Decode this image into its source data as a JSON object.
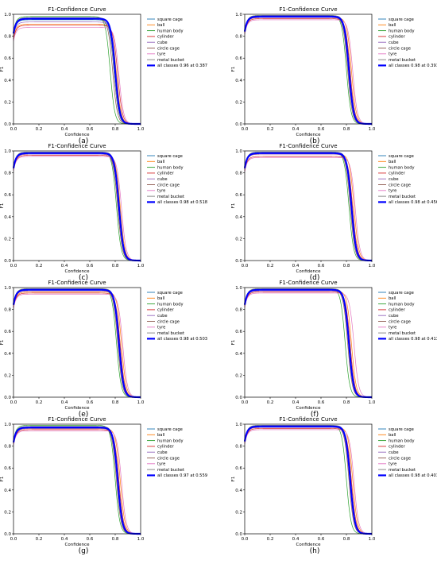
{
  "legend_labels": [
    "square cage",
    "ball",
    "human body",
    "cylinder",
    "cube",
    "circle cage",
    "tyre",
    "metal bucket"
  ],
  "legend_colors": [
    "#1f77b4",
    "#ff7f0e",
    "#2ca02c",
    "#d62728",
    "#9467bd",
    "#8c564b",
    "#e377c2",
    "#7f7f7f"
  ],
  "all_color": "#0000ff",
  "chart_data": [
    {
      "type": "line",
      "panel_label": "(a)",
      "title": "F1-Confidence Curve",
      "xlabel": "Confidence",
      "ylabel": "F1",
      "xlim": [
        0,
        1
      ],
      "ylim": [
        0,
        1
      ],
      "xticks": [
        "0.0",
        "0.2",
        "0.4",
        "0.6",
        "0.8",
        "1.0"
      ],
      "yticks": [
        "0.0",
        "0.2",
        "0.4",
        "0.6",
        "0.8",
        "1.0"
      ],
      "legend_position": "right",
      "all_classes_label": "all classes 0.96 at 0.387",
      "series": [
        {
          "name": "square cage",
          "plateau": 0.95,
          "knee": 0.79
        },
        {
          "name": "ball",
          "plateau": 0.91,
          "knee": 0.81
        },
        {
          "name": "human body",
          "plateau": 0.98,
          "knee": 0.76
        },
        {
          "name": "cylinder",
          "plateau": 0.9,
          "knee": 0.82
        },
        {
          "name": "cube",
          "plateau": 0.93,
          "knee": 0.8
        },
        {
          "name": "circle cage",
          "plateau": 0.96,
          "knee": 0.78
        },
        {
          "name": "tyre",
          "plateau": 0.88,
          "knee": 0.83
        },
        {
          "name": "metal bucket",
          "plateau": 0.97,
          "knee": 0.79
        },
        {
          "name": "all classes",
          "plateau": 0.96,
          "knee": 0.8
        }
      ]
    },
    {
      "type": "line",
      "panel_label": "(b)",
      "title": "F1-Confidence Curve",
      "xlabel": "Confidence",
      "ylabel": "F1",
      "xlim": [
        0,
        1
      ],
      "ylim": [
        0,
        1
      ],
      "xticks": [
        "0.0",
        "0.2",
        "0.4",
        "0.6",
        "0.8",
        "1.0"
      ],
      "yticks": [
        "0.0",
        "0.2",
        "0.4",
        "0.6",
        "0.8",
        "1.0"
      ],
      "legend_position": "right",
      "all_classes_label": "all classes 0.98 at 0.391",
      "series": [
        {
          "name": "square cage",
          "plateau": 0.98,
          "knee": 0.82
        },
        {
          "name": "ball",
          "plateau": 0.97,
          "knee": 0.84
        },
        {
          "name": "human body",
          "plateau": 0.99,
          "knee": 0.8
        },
        {
          "name": "cylinder",
          "plateau": 0.96,
          "knee": 0.83
        },
        {
          "name": "cube",
          "plateau": 0.97,
          "knee": 0.82
        },
        {
          "name": "circle cage",
          "plateau": 0.98,
          "knee": 0.81
        },
        {
          "name": "tyre",
          "plateau": 0.95,
          "knee": 0.85
        },
        {
          "name": "metal bucket",
          "plateau": 0.99,
          "knee": 0.82
        },
        {
          "name": "all classes",
          "plateau": 0.98,
          "knee": 0.82
        }
      ]
    },
    {
      "type": "line",
      "panel_label": "(c)",
      "title": "F1-Confidence Curve",
      "xlabel": "Confidence",
      "ylabel": "F1",
      "xlim": [
        0,
        1
      ],
      "ylim": [
        0,
        1
      ],
      "xticks": [
        "0.0",
        "0.2",
        "0.4",
        "0.6",
        "0.8",
        "1.0"
      ],
      "yticks": [
        "0.0",
        "0.2",
        "0.4",
        "0.6",
        "0.8",
        "1.0"
      ],
      "legend_position": "right",
      "all_classes_label": "all classes 0.98 at 0.518",
      "series": [
        {
          "name": "square cage",
          "plateau": 0.98,
          "knee": 0.83
        },
        {
          "name": "ball",
          "plateau": 0.97,
          "knee": 0.84
        },
        {
          "name": "human body",
          "plateau": 0.99,
          "knee": 0.81
        },
        {
          "name": "cylinder",
          "plateau": 0.96,
          "knee": 0.83
        },
        {
          "name": "cube",
          "plateau": 0.97,
          "knee": 0.82
        },
        {
          "name": "circle cage",
          "plateau": 0.98,
          "knee": 0.82
        },
        {
          "name": "tyre",
          "plateau": 0.95,
          "knee": 0.85
        },
        {
          "name": "metal bucket",
          "plateau": 0.99,
          "knee": 0.83
        },
        {
          "name": "all classes",
          "plateau": 0.98,
          "knee": 0.83
        }
      ]
    },
    {
      "type": "line",
      "panel_label": "(d)",
      "title": "F1-Confidence Curve",
      "xlabel": "Confidence",
      "ylabel": "F1",
      "xlim": [
        0,
        1
      ],
      "ylim": [
        0,
        1
      ],
      "xticks": [
        "0.0",
        "0.2",
        "0.4",
        "0.6",
        "0.8",
        "1.0"
      ],
      "yticks": [
        "0.0",
        "0.2",
        "0.4",
        "0.6",
        "0.8",
        "1.0"
      ],
      "legend_position": "right",
      "all_classes_label": "all classes 0.98 at 0.456",
      "series": [
        {
          "name": "square cage",
          "plateau": 0.98,
          "knee": 0.84
        },
        {
          "name": "ball",
          "plateau": 0.97,
          "knee": 0.86
        },
        {
          "name": "human body",
          "plateau": 0.99,
          "knee": 0.82
        },
        {
          "name": "cylinder",
          "plateau": 0.95,
          "knee": 0.85
        },
        {
          "name": "cube",
          "plateau": 0.97,
          "knee": 0.84
        },
        {
          "name": "circle cage",
          "plateau": 0.98,
          "knee": 0.83
        },
        {
          "name": "tyre",
          "plateau": 0.94,
          "knee": 0.87
        },
        {
          "name": "metal bucket",
          "plateau": 0.99,
          "knee": 0.84
        },
        {
          "name": "all classes",
          "plateau": 0.98,
          "knee": 0.84
        }
      ]
    },
    {
      "type": "line",
      "panel_label": "(e)",
      "title": "F1-Confidence Curve",
      "xlabel": "Confidence",
      "ylabel": "F1",
      "xlim": [
        0,
        1
      ],
      "ylim": [
        0,
        1
      ],
      "xticks": [
        "0.0",
        "0.2",
        "0.4",
        "0.6",
        "0.8",
        "1.0"
      ],
      "yticks": [
        "0.0",
        "0.2",
        "0.4",
        "0.6",
        "0.8",
        "1.0"
      ],
      "legend_position": "right",
      "all_classes_label": "all classes 0.98 at 0.503",
      "series": [
        {
          "name": "square cage",
          "plateau": 0.98,
          "knee": 0.83
        },
        {
          "name": "ball",
          "plateau": 0.96,
          "knee": 0.85
        },
        {
          "name": "human body",
          "plateau": 0.99,
          "knee": 0.81
        },
        {
          "name": "cylinder",
          "plateau": 0.95,
          "knee": 0.84
        },
        {
          "name": "cube",
          "plateau": 0.97,
          "knee": 0.83
        },
        {
          "name": "circle cage",
          "plateau": 0.98,
          "knee": 0.82
        },
        {
          "name": "tyre",
          "plateau": 0.94,
          "knee": 0.86
        },
        {
          "name": "metal bucket",
          "plateau": 0.99,
          "knee": 0.83
        },
        {
          "name": "all classes",
          "plateau": 0.98,
          "knee": 0.83
        }
      ]
    },
    {
      "type": "line",
      "panel_label": "(f)",
      "title": "F1-Confidence Curve",
      "xlabel": "Confidence",
      "ylabel": "F1",
      "xlim": [
        0,
        1
      ],
      "ylim": [
        0,
        1
      ],
      "xticks": [
        "0.0",
        "0.2",
        "0.4",
        "0.6",
        "0.8",
        "1.0"
      ],
      "yticks": [
        "0.0",
        "0.2",
        "0.4",
        "0.6",
        "0.8",
        "1.0"
      ],
      "legend_position": "right",
      "all_classes_label": "all classes 0.98 at 0.413",
      "series": [
        {
          "name": "square cage",
          "plateau": 0.98,
          "knee": 0.82
        },
        {
          "name": "ball",
          "plateau": 0.97,
          "knee": 0.84
        },
        {
          "name": "human body",
          "plateau": 0.99,
          "knee": 0.79
        },
        {
          "name": "cylinder",
          "plateau": 0.96,
          "knee": 0.83
        },
        {
          "name": "cube",
          "plateau": 0.97,
          "knee": 0.82
        },
        {
          "name": "circle cage",
          "plateau": 0.98,
          "knee": 0.81
        },
        {
          "name": "tyre",
          "plateau": 0.95,
          "knee": 0.86
        },
        {
          "name": "metal bucket",
          "plateau": 0.99,
          "knee": 0.82
        },
        {
          "name": "all classes",
          "plateau": 0.98,
          "knee": 0.82
        }
      ]
    },
    {
      "type": "line",
      "panel_label": "(g)",
      "title": "F1-Confidence Curve",
      "xlabel": "Confidence",
      "ylabel": "F1",
      "xlim": [
        0,
        1
      ],
      "ylim": [
        0,
        1
      ],
      "xticks": [
        "0.0",
        "0.2",
        "0.4",
        "0.6",
        "0.8",
        "1.0"
      ],
      "yticks": [
        "0.0",
        "0.2",
        "0.4",
        "0.6",
        "0.8",
        "1.0"
      ],
      "legend_position": "right",
      "all_classes_label": "all classes 0.97 at 0.559",
      "series": [
        {
          "name": "square cage",
          "plateau": 0.97,
          "knee": 0.82
        },
        {
          "name": "ball",
          "plateau": 0.96,
          "knee": 0.84
        },
        {
          "name": "human body",
          "plateau": 0.99,
          "knee": 0.8
        },
        {
          "name": "cylinder",
          "plateau": 0.95,
          "knee": 0.83
        },
        {
          "name": "cube",
          "plateau": 0.96,
          "knee": 0.82
        },
        {
          "name": "circle cage",
          "plateau": 0.97,
          "knee": 0.81
        },
        {
          "name": "tyre",
          "plateau": 0.94,
          "knee": 0.85
        },
        {
          "name": "metal bucket",
          "plateau": 0.98,
          "knee": 0.82
        },
        {
          "name": "all classes",
          "plateau": 0.97,
          "knee": 0.82
        }
      ]
    },
    {
      "type": "line",
      "panel_label": "(h)",
      "title": "F1-Confidence Curve",
      "xlabel": "Confidence",
      "ylabel": "F1",
      "xlim": [
        0,
        1
      ],
      "ylim": [
        0,
        1
      ],
      "xticks": [
        "0.0",
        "0.2",
        "0.4",
        "0.6",
        "0.8",
        "1.0"
      ],
      "yticks": [
        "0.0",
        "0.2",
        "0.4",
        "0.6",
        "0.8",
        "1.0"
      ],
      "legend_position": "right",
      "all_classes_label": "all classes 0.98 at 0.401",
      "series": [
        {
          "name": "square cage",
          "plateau": 0.98,
          "knee": 0.83
        },
        {
          "name": "ball",
          "plateau": 0.97,
          "knee": 0.85
        },
        {
          "name": "human body",
          "plateau": 0.99,
          "knee": 0.8
        },
        {
          "name": "cylinder",
          "plateau": 0.96,
          "knee": 0.84
        },
        {
          "name": "cube",
          "plateau": 0.97,
          "knee": 0.83
        },
        {
          "name": "circle cage",
          "plateau": 0.98,
          "knee": 0.82
        },
        {
          "name": "tyre",
          "plateau": 0.95,
          "knee": 0.86
        },
        {
          "name": "metal bucket",
          "plateau": 0.99,
          "knee": 0.83
        },
        {
          "name": "all classes",
          "plateau": 0.98,
          "knee": 0.83
        }
      ]
    }
  ]
}
